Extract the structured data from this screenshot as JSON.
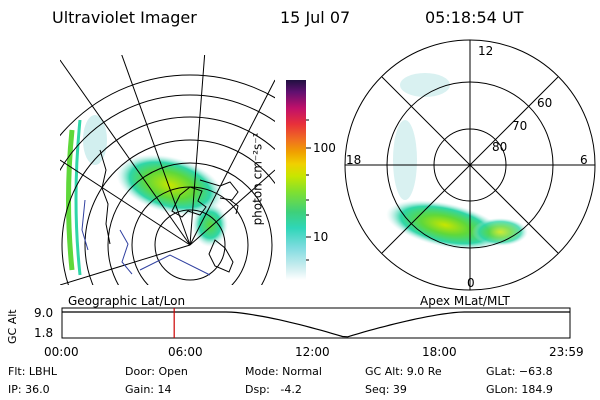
{
  "header": {
    "instrument": "Ultraviolet Imager",
    "date": "15 Jul 07",
    "time": "05:18:54 UT"
  },
  "colorbar": {
    "unit_label": "photon cm⁻²s⁻¹",
    "tick_100": "100",
    "tick_10": "10"
  },
  "geo_panel": {
    "caption": "Geographic Lat/Lon"
  },
  "polar_panel": {
    "caption": "Apex MLat/MLT",
    "mlt_labels": {
      "top": "12",
      "left": "18",
      "right": "6",
      "bottom": "0"
    },
    "lat_labels": [
      "60",
      "70",
      "80"
    ]
  },
  "altitude_plot": {
    "axis_label": "GC Alt",
    "y_ticks": [
      "9.0",
      "1.8"
    ],
    "x_ticks": [
      "00:00",
      "06:00",
      "12:00",
      "18:00",
      "23:59"
    ],
    "marker_time_hours": 5.3
  },
  "footer": {
    "flt": "Flt: LBHL",
    "ip": "IP: 36.0",
    "door": "Door: Open",
    "gain": "Gain: 14",
    "mode": "Mode: Normal",
    "dsp": "Dsp:   -4.2",
    "gcalt": "GC Alt: 9.0 Re",
    "seq": "Seq: 39",
    "glat": "GLat: −63.8",
    "glon": "GLon: 184.9"
  },
  "colors": {
    "marker": "#cc0000",
    "aurora_bright": "#c8e600",
    "aurora_mid": "#5fd83a",
    "aurora_low": "#2fd6a8",
    "aurora_faint": "#bfe8e8"
  }
}
